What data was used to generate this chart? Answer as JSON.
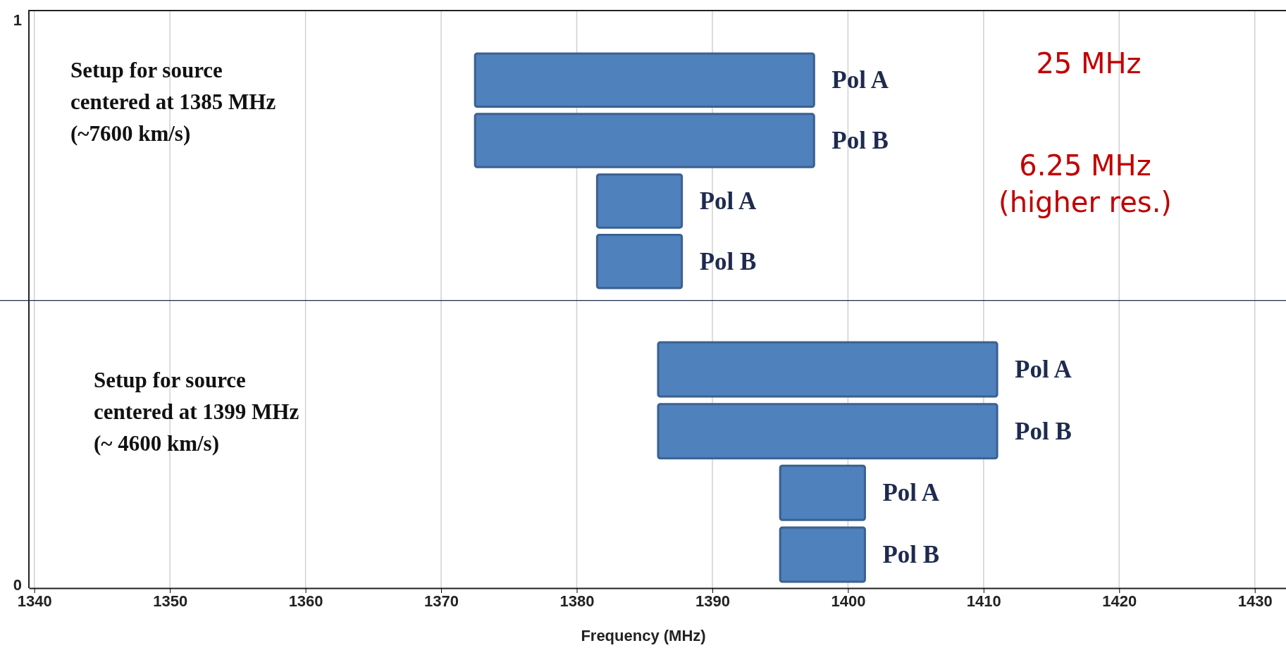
{
  "chart_data": [
    {
      "type": "bar",
      "orientation": "horizontal",
      "categories": [
        "Pol A",
        "Pol B",
        "Pol A",
        "Pol B"
      ],
      "base": [
        1372.5,
        1372.5,
        1381.5,
        1381.5
      ],
      "values": [
        25,
        25,
        6.25,
        6.25
      ],
      "color": "#4f81bd",
      "xlim": [
        1339.6,
        1432.3
      ],
      "xticks": [
        1340,
        1350,
        1360,
        1370,
        1380,
        1390,
        1400,
        1410,
        1420,
        1430
      ],
      "grid": "x",
      "tick_labels": false,
      "annotations": [
        "1",
        "Setup for source\ncentered at 1385 MHz\n(~7600 km/s)",
        "25 MHz",
        "6.25 MHz\n(higher res.)"
      ]
    },
    {
      "type": "bar",
      "orientation": "horizontal",
      "categories": [
        "Pol A",
        "Pol B",
        "Pol A",
        "Pol B"
      ],
      "base": [
        1386,
        1386,
        1395,
        1395
      ],
      "values": [
        25,
        25,
        6.25,
        6.25
      ],
      "color": "#4f81bd",
      "xlim": [
        1339.6,
        1432.3
      ],
      "xticks": [
        1340,
        1350,
        1360,
        1370,
        1380,
        1390,
        1400,
        1410,
        1420,
        1430
      ],
      "grid": "x",
      "tick_labels": "x",
      "xlabel": "Frequency (MHz)",
      "annotations": [
        "0",
        "Setup for source\ncentered at 1399 MHz\n(~ 4600 km/s)"
      ]
    }
  ]
}
